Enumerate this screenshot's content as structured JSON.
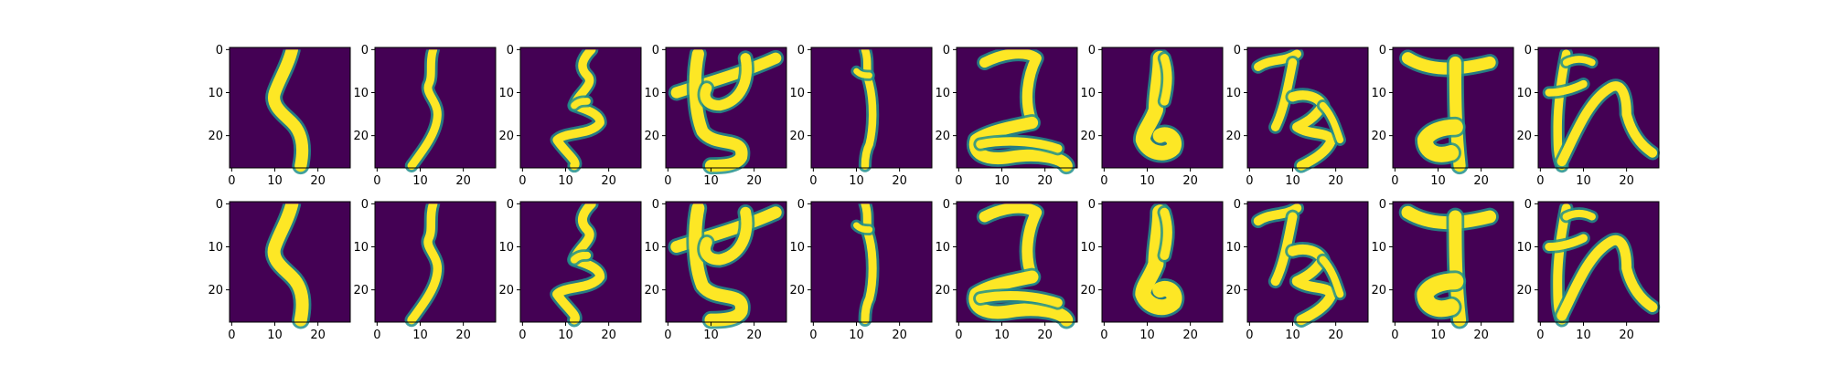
{
  "figure": {
    "rows": 2,
    "cols": 10,
    "background": "#ffffff",
    "image_background": "#440154"
  },
  "chart_data": {
    "type": "heatmap",
    "title": "",
    "xlabel": "",
    "ylabel": "",
    "image_size": [
      28,
      28
    ],
    "xlim": [
      -0.5,
      27.5
    ],
    "ylim": [
      27.5,
      -0.5
    ],
    "xticks": [
      0,
      10,
      20
    ],
    "yticks": [
      0,
      10,
      20
    ],
    "colormap": "viridis",
    "colors": {
      "low": "#440154",
      "mid": "#21918c",
      "high": "#fde725"
    },
    "grid": false,
    "panels": [
      {
        "row": 0,
        "col": 0,
        "glyph": "ku"
      },
      {
        "row": 0,
        "col": 1,
        "glyph": "ku-thin"
      },
      {
        "row": 0,
        "col": 2,
        "glyph": "ru"
      },
      {
        "row": 0,
        "col": 3,
        "glyph": "se"
      },
      {
        "row": 0,
        "col": 4,
        "glyph": "tsu-vertical"
      },
      {
        "row": 0,
        "col": 5,
        "glyph": "ko"
      },
      {
        "row": 0,
        "col": 6,
        "glyph": "ri"
      },
      {
        "row": 0,
        "col": 7,
        "glyph": "ha"
      },
      {
        "row": 0,
        "col": 8,
        "glyph": "to"
      },
      {
        "row": 0,
        "col": 9,
        "glyph": "wa"
      },
      {
        "row": 1,
        "col": 0,
        "glyph": "ku"
      },
      {
        "row": 1,
        "col": 1,
        "glyph": "ku-thin"
      },
      {
        "row": 1,
        "col": 2,
        "glyph": "ru"
      },
      {
        "row": 1,
        "col": 3,
        "glyph": "se"
      },
      {
        "row": 1,
        "col": 4,
        "glyph": "tsu-vertical"
      },
      {
        "row": 1,
        "col": 5,
        "glyph": "ko"
      },
      {
        "row": 1,
        "col": 6,
        "glyph": "ri"
      },
      {
        "row": 1,
        "col": 7,
        "glyph": "ha"
      },
      {
        "row": 1,
        "col": 8,
        "glyph": "to"
      },
      {
        "row": 1,
        "col": 9,
        "glyph": "wa"
      }
    ]
  }
}
